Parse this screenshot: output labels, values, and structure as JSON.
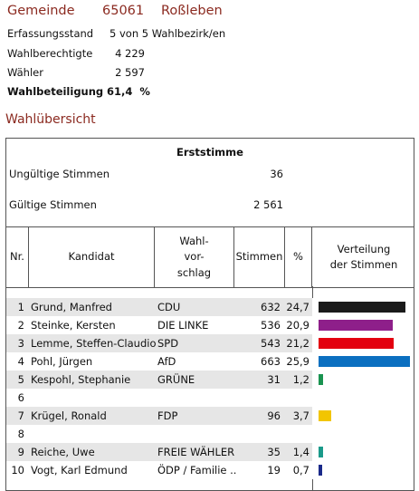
{
  "header": {
    "label": "Gemeinde",
    "code": "65061",
    "name": "Roßleben"
  },
  "meta": [
    {
      "label": "Erfassungsstand",
      "value": "5 von 5 Wahlbezirk/en"
    },
    {
      "label": "Wahlberechtigte",
      "value": "4 229"
    },
    {
      "label": "Wähler",
      "value": "2 597"
    },
    {
      "label": "Wahlbeteiligung",
      "value": "61,4  %"
    }
  ],
  "overview_title": "Wahlübersicht",
  "erststimme": {
    "title": "Erststimme",
    "invalid_label": "Ungültige Stimmen",
    "invalid_value": "36",
    "valid_label": "Gültige Stimmen",
    "valid_value": "2 561"
  },
  "columns": {
    "nr": "Nr.",
    "kandidat": "Kandidat",
    "wahlvorschlag": "Wahl-\nvor-\nschlag",
    "stimmen": "Stimmen",
    "pct": "%",
    "verteilung": "Verteilung\nder Stimmen"
  },
  "chart_data": {
    "type": "bar",
    "title": "Verteilung der Stimmen",
    "max_percent": 25.9,
    "rows": [
      {
        "nr": "1",
        "name": "Grund, Manfred",
        "party": "CDU",
        "votes": "632",
        "pct": "24,7",
        "value": 24.7,
        "color": "#1a1a1a"
      },
      {
        "nr": "2",
        "name": "Steinke, Kersten",
        "party": "DIE LINKE",
        "votes": "536",
        "pct": "20,9",
        "value": 20.9,
        "color": "#8e1f8a"
      },
      {
        "nr": "3",
        "name": "Lemme, Steffen-Claudio",
        "party": "SPD",
        "votes": "543",
        "pct": "21,2",
        "value": 21.2,
        "color": "#e3000f"
      },
      {
        "nr": "4",
        "name": "Pohl, Jürgen",
        "party": "AfD",
        "votes": "663",
        "pct": "25,9",
        "value": 25.9,
        "color": "#0b6fc0"
      },
      {
        "nr": "5",
        "name": "Kespohl, Stephanie",
        "party": "GRÜNE",
        "votes": "31",
        "pct": "1,2",
        "value": 1.2,
        "color": "#1a9350"
      },
      {
        "nr": "6",
        "name": "",
        "party": "",
        "votes": "",
        "pct": "",
        "value": 0,
        "color": "#ffffff"
      },
      {
        "nr": "7",
        "name": "Krügel, Ronald",
        "party": "FDP",
        "votes": "96",
        "pct": "3,7",
        "value": 3.7,
        "color": "#f2c500"
      },
      {
        "nr": "8",
        "name": "",
        "party": "",
        "votes": "",
        "pct": "",
        "value": 0,
        "color": "#ffffff"
      },
      {
        "nr": "9",
        "name": "Reiche, Uwe",
        "party": "FREIE WÄHLER",
        "votes": "35",
        "pct": "1,4",
        "value": 1.4,
        "color": "#1a9a8a"
      },
      {
        "nr": "10",
        "name": "Vogt, Karl Edmund",
        "party": "ÖDP / Familie ..",
        "votes": "19",
        "pct": "0,7",
        "value": 0.7,
        "color": "#1a2a8a"
      }
    ]
  }
}
